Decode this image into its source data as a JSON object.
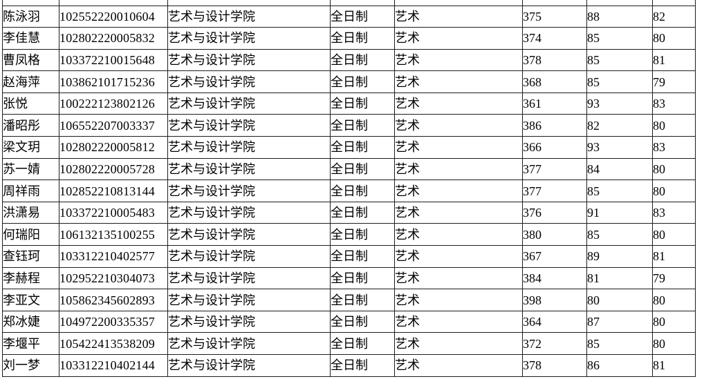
{
  "page": {
    "background_color": "#ffffff",
    "text_color": "#000000",
    "table_border_color": "#1c1c1c"
  },
  "table": {
    "rows": [
      {
        "name": "陈泳羽",
        "exam_id": "102552220010604",
        "college": "艺术与设计学院",
        "mode": "全日制",
        "subject": "艺术",
        "score1": "375",
        "score2": "88",
        "score3": "82"
      },
      {
        "name": "李佳慧",
        "exam_id": "102802220005832",
        "college": "艺术与设计学院",
        "mode": "全日制",
        "subject": "艺术",
        "score1": "374",
        "score2": "85",
        "score3": "80"
      },
      {
        "name": "曹凤格",
        "exam_id": "103372210015648",
        "college": "艺术与设计学院",
        "mode": "全日制",
        "subject": "艺术",
        "score1": "378",
        "score2": "85",
        "score3": "81"
      },
      {
        "name": "赵海萍",
        "exam_id": "103862101715236",
        "college": "艺术与设计学院",
        "mode": "全日制",
        "subject": "艺术",
        "score1": "368",
        "score2": "85",
        "score3": "79"
      },
      {
        "name": "张悦",
        "exam_id": "100222123802126",
        "college": "艺术与设计学院",
        "mode": "全日制",
        "subject": "艺术",
        "score1": "361",
        "score2": "93",
        "score3": "83"
      },
      {
        "name": "潘昭彤",
        "exam_id": "106552207003337",
        "college": "艺术与设计学院",
        "mode": "全日制",
        "subject": "艺术",
        "score1": "386",
        "score2": "82",
        "score3": "80"
      },
      {
        "name": "梁文玥",
        "exam_id": "102802220005812",
        "college": "艺术与设计学院",
        "mode": "全日制",
        "subject": "艺术",
        "score1": "366",
        "score2": "93",
        "score3": "83"
      },
      {
        "name": "苏一婧",
        "exam_id": "102802220005728",
        "college": "艺术与设计学院",
        "mode": "全日制",
        "subject": "艺术",
        "score1": "377",
        "score2": "84",
        "score3": "80"
      },
      {
        "name": "周祥雨",
        "exam_id": "102852210813144",
        "college": "艺术与设计学院",
        "mode": "全日制",
        "subject": "艺术",
        "score1": "377",
        "score2": "85",
        "score3": "80"
      },
      {
        "name": "洪潇易",
        "exam_id": "103372210005483",
        "college": "艺术与设计学院",
        "mode": "全日制",
        "subject": "艺术",
        "score1": "376",
        "score2": "91",
        "score3": "83"
      },
      {
        "name": "何瑞阳",
        "exam_id": "106132135100255",
        "college": "艺术与设计学院",
        "mode": "全日制",
        "subject": "艺术",
        "score1": "380",
        "score2": "85",
        "score3": "80"
      },
      {
        "name": "查钰珂",
        "exam_id": "103312210402577",
        "college": "艺术与设计学院",
        "mode": "全日制",
        "subject": "艺术",
        "score1": "367",
        "score2": "89",
        "score3": "81"
      },
      {
        "name": "李赫程",
        "exam_id": "102952210304073",
        "college": "艺术与设计学院",
        "mode": "全日制",
        "subject": "艺术",
        "score1": "384",
        "score2": "81",
        "score3": "79"
      },
      {
        "name": "李亚文",
        "exam_id": "105862345602893",
        "college": "艺术与设计学院",
        "mode": "全日制",
        "subject": "艺术",
        "score1": "398",
        "score2": "80",
        "score3": "80"
      },
      {
        "name": "郑冰婕",
        "exam_id": "104972200335357",
        "college": "艺术与设计学院",
        "mode": "全日制",
        "subject": "艺术",
        "score1": "364",
        "score2": "87",
        "score3": "80"
      },
      {
        "name": "李堰平",
        "exam_id": "105422413538209",
        "college": "艺术与设计学院",
        "mode": "全日制",
        "subject": "艺术",
        "score1": "372",
        "score2": "85",
        "score3": "80"
      },
      {
        "name": "刘一梦",
        "exam_id": "103312210402144",
        "college": "艺术与设计学院",
        "mode": "全日制",
        "subject": "艺术",
        "score1": "378",
        "score2": "86",
        "score3": "81"
      }
    ]
  }
}
